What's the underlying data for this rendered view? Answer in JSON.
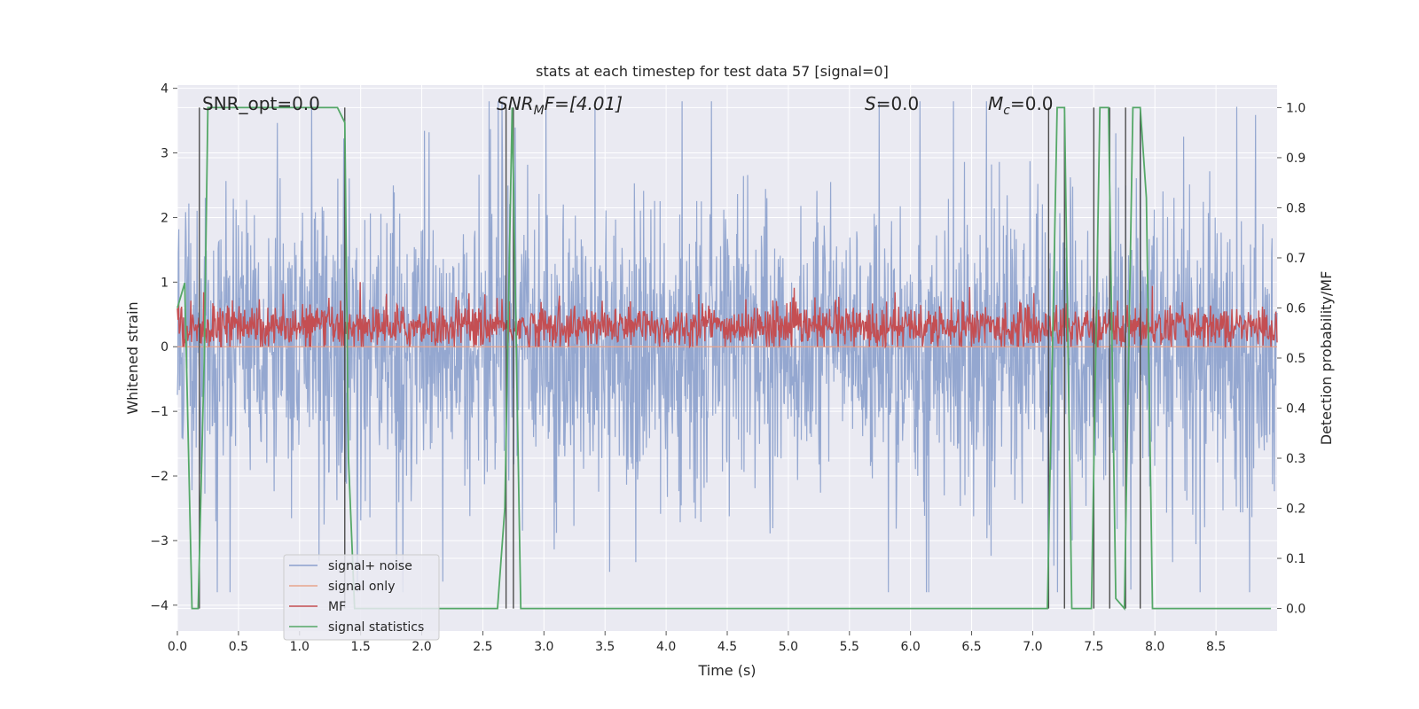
{
  "chart_data": {
    "type": "line",
    "title": "stats at each timestep for test data 57 [signal=0]",
    "xlabel": "Time (s)",
    "ylabel": "Whitened strain",
    "y2label": "Detection probability/MF",
    "xlim": [
      0.0,
      9.0
    ],
    "ylim": [
      -4.4,
      4.05
    ],
    "y2lim": [
      -0.045,
      1.045
    ],
    "xticks": [
      "0.0",
      "0.5",
      "1.0",
      "1.5",
      "2.0",
      "2.5",
      "3.0",
      "3.5",
      "4.0",
      "4.5",
      "5.0",
      "5.5",
      "6.0",
      "6.5",
      "7.0",
      "7.5",
      "8.0",
      "8.5"
    ],
    "yticks": [
      "4",
      "3",
      "2",
      "1",
      "0",
      "−1",
      "−2",
      "−3",
      "−4"
    ],
    "y2ticks": [
      "1.0",
      "0.9",
      "0.8",
      "0.7",
      "0.6",
      "0.5",
      "0.4",
      "0.3",
      "0.2",
      "0.1",
      "0.0"
    ],
    "grid": true,
    "legend_position": "lower-left",
    "annotations": {
      "snr_opt": "SNR_opt=0.0",
      "snr_mf_main": "SNR",
      "snr_mf_sub": "M",
      "snr_mf_rest": "F=[4.01]",
      "s_var": "S",
      "s_rest": "=0.0",
      "mc_main": "M",
      "mc_sub": "c",
      "mc_rest": "=0.0"
    },
    "series": [
      {
        "name": "signal+ noise",
        "color": "#8ba0cc",
        "axis": "left",
        "noise_sd": 1.0,
        "range": [
          -3.8,
          3.8
        ]
      },
      {
        "name": "signal only",
        "color": "#e8a58c",
        "axis": "left",
        "values": "0 throughout"
      },
      {
        "name": "MF",
        "color": "#c44e52",
        "axis": "left",
        "center": 0.3,
        "range": [
          0.0,
          1.0
        ]
      },
      {
        "name": "signal statistics",
        "color": "#55a868",
        "axis": "right",
        "x": [
          0.0,
          0.06,
          0.12,
          0.17,
          0.22,
          0.25,
          1.31,
          1.37,
          1.4,
          1.45,
          2.62,
          2.68,
          2.74,
          2.81,
          7.12,
          7.2,
          7.26,
          7.32,
          7.48,
          7.55,
          7.62,
          7.68,
          7.75,
          7.82,
          7.88,
          7.93,
          7.98,
          8.9,
          8.95
        ],
        "y": [
          0.6,
          0.65,
          0.0,
          0.0,
          0.5,
          1.0,
          1.0,
          0.97,
          0.3,
          0.0,
          0.0,
          0.2,
          1.0,
          0.0,
          0.0,
          1.0,
          1.0,
          0.0,
          0.0,
          1.0,
          1.0,
          0.02,
          0.0,
          1.0,
          1.0,
          0.82,
          0.0,
          0.0,
          0.0
        ]
      }
    ],
    "vlines": {
      "color": "#4d4d4d",
      "x": [
        0.18,
        1.37,
        2.69,
        2.75,
        7.13,
        7.26,
        7.5,
        7.63,
        7.76,
        7.88
      ]
    }
  }
}
